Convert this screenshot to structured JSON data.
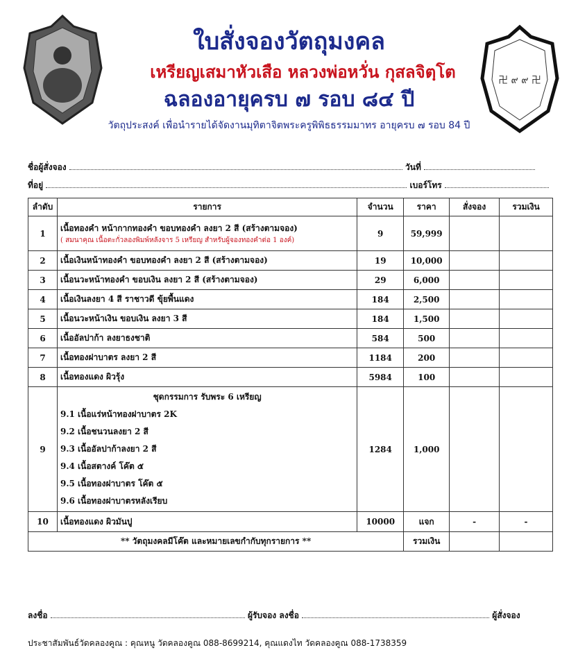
{
  "header": {
    "title": "ใบสั่งจองวัตถุมงคล",
    "subtitle": "เหรียญเสมาหัวเสือ หลวงพ่อหวั่น กุสลจิตฺโต",
    "occasion": "ฉลองอายุครบ ๗ รอบ ๘๔ ปี",
    "purpose": "วัตถุประสงค์ เพื่อนำรายได้จัดงานมุทิตาจิตพระครูพิพิธธรรมมาทร อายุครบ ๗ รอบ 84 ปี"
  },
  "form": {
    "name_label": "ชื่อผู้สั่งจอง",
    "date_label": "วันที่",
    "address_label": "ที่อยู่",
    "phone_label": "เบอร์โทร"
  },
  "table": {
    "headers": [
      "ลำดับ",
      "รายการ",
      "จำนวน",
      "ราคา",
      "สั่งจอง",
      "รวมเงิน"
    ],
    "rows": [
      {
        "no": "1",
        "item": "เนื้อทองคำ หน้ากากทองคำ ขอบทองคำ ลงยา 2 สี (สร้างตามจอง)",
        "note": "( สมนาคุณ เนื้อตะกั่วลองพิมพ์หลังจาร 5 เหรียญ สำหรับผู้จองทองคำต่อ 1 องค์)",
        "qty": "9",
        "price": "59,999",
        "order": "",
        "total": ""
      },
      {
        "no": "2",
        "item": "เนื้อเงินหน้าทองคำ ขอบทองคำ ลงยา 2 สี (สร้างตามจอง)",
        "qty": "19",
        "price": "10,000",
        "order": "",
        "total": ""
      },
      {
        "no": "3",
        "item": "เนื้อนวะหน้าทองคำ ขอบเงิน ลงยา 2 สี (สร้างตามจอง)",
        "qty": "29",
        "price": "6,000",
        "order": "",
        "total": ""
      },
      {
        "no": "4",
        "item": "เนื้อเงินลงยา 4 สี ราชาวดี ขุ้ยพื้นแดง",
        "qty": "184",
        "price": "2,500",
        "order": "",
        "total": ""
      },
      {
        "no": "5",
        "item": "เนื้อนวะหน้าเงิน ขอบเงิน ลงยา 3 สี",
        "qty": "184",
        "price": "1,500",
        "order": "",
        "total": ""
      },
      {
        "no": "6",
        "item": "เนื้ออัลปาก้า ลงยาธงชาติ",
        "qty": "584",
        "price": "500",
        "order": "",
        "total": ""
      },
      {
        "no": "7",
        "item": "เนื้อทองฝาบาตร ลงยา 2 สี",
        "qty": "1184",
        "price": "200",
        "order": "",
        "total": ""
      },
      {
        "no": "8",
        "item": "เนื้อทองแดง ผิวรุ้ง",
        "qty": "5984",
        "price": "100",
        "order": "",
        "total": ""
      },
      {
        "no": "9",
        "item": "ชุดกรรมการ รับพระ 6 เหรียญ",
        "subitems": [
          "9.1 เนื้อแร่หน้าทองฝาบาตร 2K",
          "9.2 เนื้อชนวนลงยา 2 สี",
          "9.3 เนื้ออัลปาก้าลงยา 2 สี",
          "9.4 เนื้อสตางค์ โค๊ต ๕",
          "9.5 เนื้อทองฝาบาตร โค๊ต ๕",
          "9.6 เนื้อทองฝาบาตรหลังเรียบ"
        ],
        "qty": "1284",
        "price": "1,000",
        "order": "",
        "total": ""
      },
      {
        "no": "10",
        "item": "เนื้อทองแดง ผิวมันปู",
        "qty": "10000",
        "price": "แจก",
        "order": "-",
        "total": "-"
      }
    ],
    "footer_note": "** วัตถุมงคลมีโค๊ต และหมายเลขกำกับทุกรายการ **",
    "footer_total_label": "รวมเงิน"
  },
  "signatures": {
    "sign_label": "ลงชื่อ",
    "receiver_label": "ผู้รับจอง",
    "orderer_label": "ผู้สั่งจอง"
  },
  "contact": "ประชาสัมพันธ์วัดคลองคูณ : คุณหนู วัดคลองคูณ 088-8699214, คุณแดงไท วัดคลองคูณ 088-1738359",
  "colors": {
    "title_blue": "#1c2a8c",
    "accent_red": "#c8141e"
  }
}
